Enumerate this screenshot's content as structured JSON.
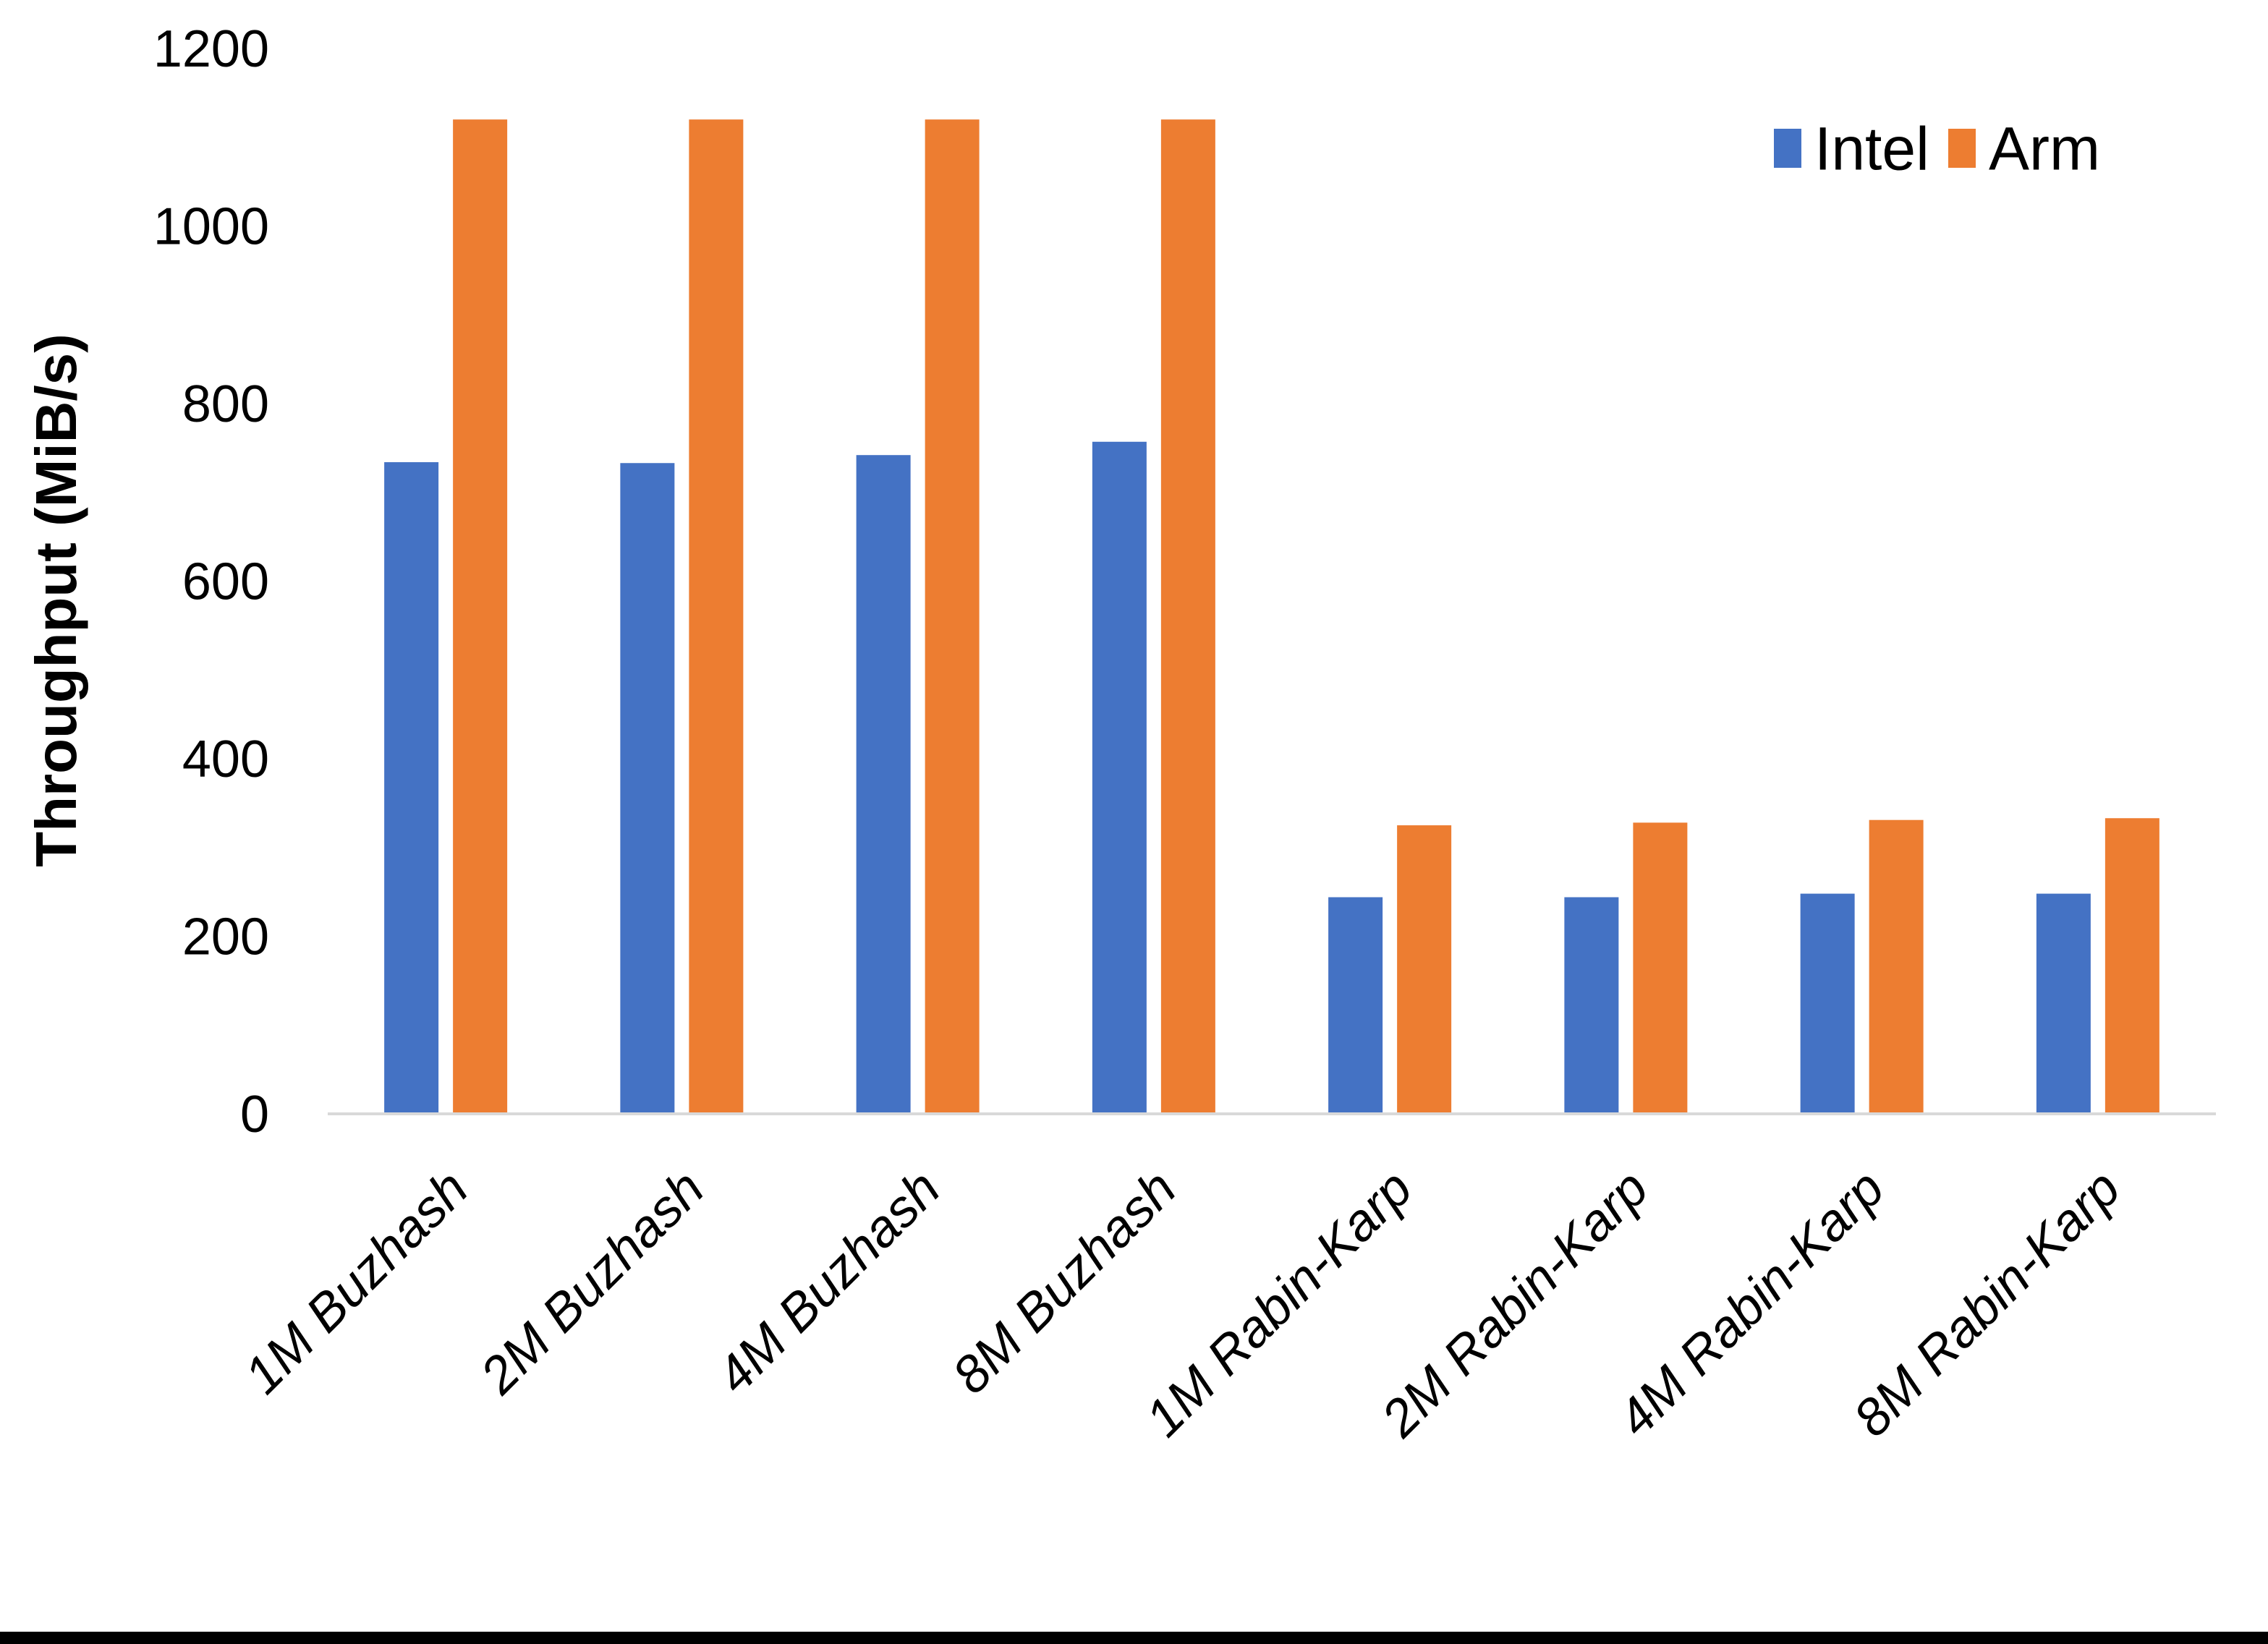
{
  "chart_data": {
    "type": "bar",
    "ylabel": "Throughput (MiB/s)",
    "categories": [
      "1M Buzhash",
      "2M Buzhash",
      "4M Buzhash",
      "8M Buzhash",
      "1M Rabin-Karp",
      "2M Rabin-Karp",
      "4M Rabin-Karp",
      "8M Rabin-Karp"
    ],
    "series": [
      {
        "name": "Intel",
        "color": "#4472C4",
        "values": [
          734,
          733,
          742,
          757,
          244,
          244,
          248,
          248
        ]
      },
      {
        "name": "Arm",
        "color": "#ED7D31",
        "values": [
          1120,
          1120,
          1120,
          1120,
          325,
          328,
          331,
          333
        ]
      }
    ],
    "y_ticks": [
      0,
      200,
      400,
      600,
      800,
      1000,
      1200
    ],
    "ylim": [
      0,
      1200
    ],
    "grid": false,
    "legend_position": "top-right",
    "colors": {
      "axis_line": "#D9D9D9",
      "text": "#000000",
      "background": "#FFFFFF",
      "bottom_border": "#000000"
    }
  }
}
